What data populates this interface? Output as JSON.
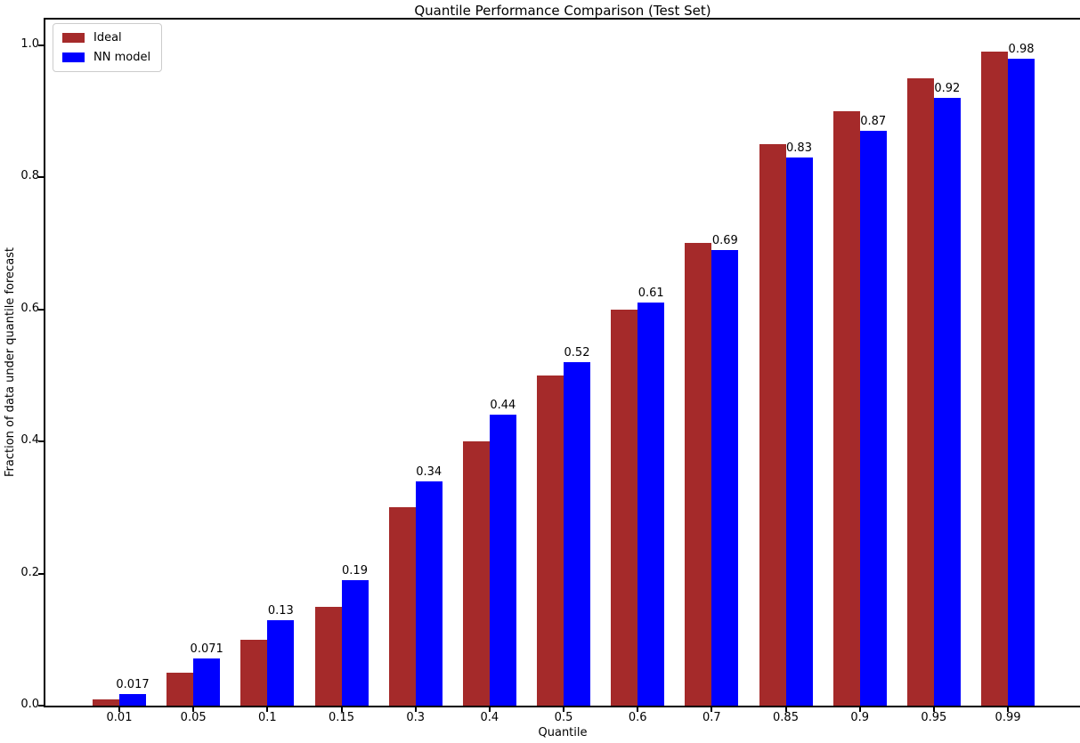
{
  "chart_data": {
    "type": "bar",
    "title": "Quantile Performance Comparison (Test Set)",
    "xlabel": "Quantile",
    "ylabel": "Fraction of data under quantile forecast",
    "categories": [
      "0.01",
      "0.05",
      "0.1",
      "0.15",
      "0.3",
      "0.4",
      "0.5",
      "0.6",
      "0.7",
      "0.85",
      "0.9",
      "0.95",
      "0.99"
    ],
    "series": [
      {
        "name": "Ideal",
        "color": "#A52A2A",
        "values": [
          0.01,
          0.05,
          0.1,
          0.15,
          0.3,
          0.4,
          0.5,
          0.6,
          0.7,
          0.85,
          0.9,
          0.95,
          0.99
        ]
      },
      {
        "name": "NN model",
        "color": "#0000FF",
        "values": [
          0.017,
          0.071,
          0.13,
          0.19,
          0.34,
          0.44,
          0.52,
          0.61,
          0.69,
          0.83,
          0.87,
          0.92,
          0.98
        ],
        "bar_labels": [
          "0.017",
          "0.071",
          "0.13",
          "0.19",
          "0.34",
          "0.44",
          "0.52",
          "0.61",
          "0.69",
          "0.83",
          "0.87",
          "0.92",
          "0.98"
        ]
      }
    ],
    "yticks": [
      "0.0",
      "0.2",
      "0.4",
      "0.6",
      "0.8",
      "1.0"
    ],
    "ylim": [
      0,
      1.04
    ],
    "legend_position": "upper left",
    "grid": false,
    "text_color": "#000000",
    "background_color": "#ffffff"
  }
}
